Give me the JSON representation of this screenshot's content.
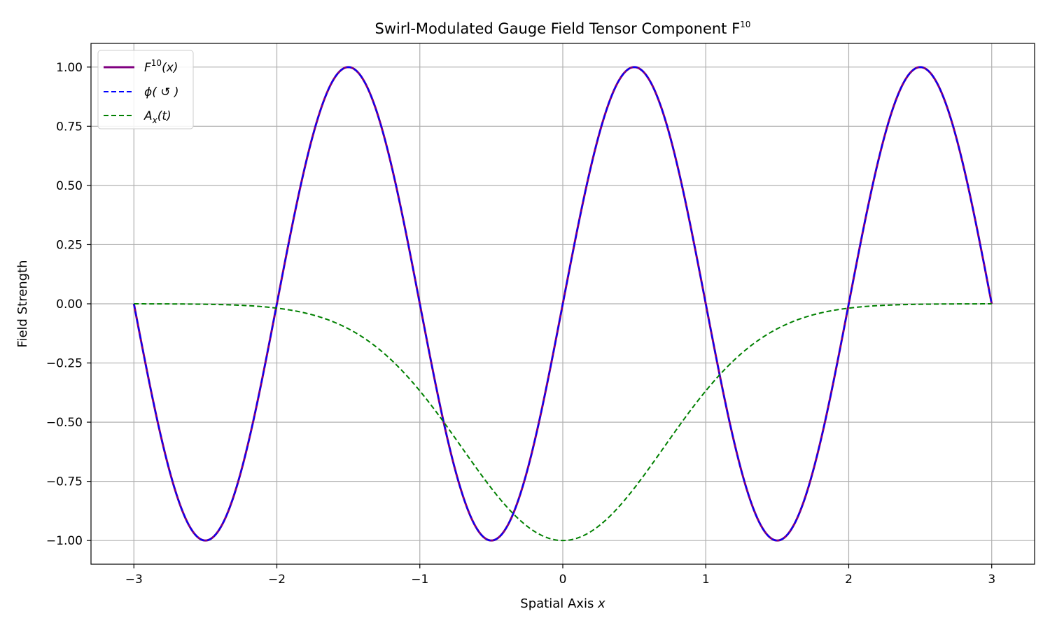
{
  "chart_data": {
    "type": "line",
    "title": "Swirl-Modulated Gauge Field Tensor Component F",
    "title_sup": "10",
    "xlabel": "Spatial Axis ",
    "xlabel_var": "x",
    "ylabel": "Field Strength",
    "xlim": [
      -3.3,
      3.3
    ],
    "ylim": [
      -1.1,
      1.1
    ],
    "xticks": [
      -3,
      -2,
      -1,
      0,
      1,
      2,
      3
    ],
    "xtick_labels": [
      "−3",
      "−2",
      "−1",
      "0",
      "1",
      "2",
      "3"
    ],
    "yticks": [
      -1.0,
      -0.75,
      -0.5,
      -0.25,
      0.0,
      0.25,
      0.5,
      0.75,
      1.0
    ],
    "ytick_labels": [
      "−1.00",
      "−0.75",
      "−0.50",
      "−0.25",
      "0.00",
      "0.25",
      "0.50",
      "0.75",
      "1.00"
    ],
    "grid": true,
    "legend_position": "top-left",
    "x_domain": [
      -3,
      3
    ],
    "series": [
      {
        "name": "F^10(x)",
        "legend_main": "F",
        "legend_sup": "10",
        "legend_rest": "(x)",
        "color": "#800080",
        "style": "solid",
        "function": "sin(pi*x)",
        "values_at_ticks": [
          0,
          0,
          0,
          0,
          0,
          0,
          0
        ],
        "peaks": [
          [
            -2.5,
            -1.0
          ],
          [
            -1.5,
            1.0
          ],
          [
            -0.5,
            -1.0
          ],
          [
            0.5,
            1.0
          ],
          [
            1.5,
            -1.0
          ],
          [
            2.5,
            1.0
          ]
        ]
      },
      {
        "name": "ϕ(↺)",
        "legend_main": "ϕ( ↺ )",
        "legend_sup": "",
        "legend_rest": "",
        "color": "#0000ff",
        "style": "dashed",
        "function": "sin(pi*x)",
        "values_at_ticks": [
          0,
          0,
          0,
          0,
          0,
          0,
          0
        ],
        "peaks": [
          [
            -2.5,
            -1.0
          ],
          [
            -1.5,
            1.0
          ],
          [
            -0.5,
            -1.0
          ],
          [
            0.5,
            1.0
          ],
          [
            1.5,
            -1.0
          ],
          [
            2.5,
            1.0
          ]
        ]
      },
      {
        "name": "A_x(t)",
        "legend_main": "A",
        "legend_sub": "x",
        "legend_rest": "(t)",
        "color": "#008000",
        "style": "dashed",
        "function": "-exp(-x^2)",
        "values_at_ticks": [
          -0.0001,
          -0.018,
          -0.368,
          -1.0,
          -0.368,
          -0.018,
          -0.0001
        ]
      }
    ]
  }
}
